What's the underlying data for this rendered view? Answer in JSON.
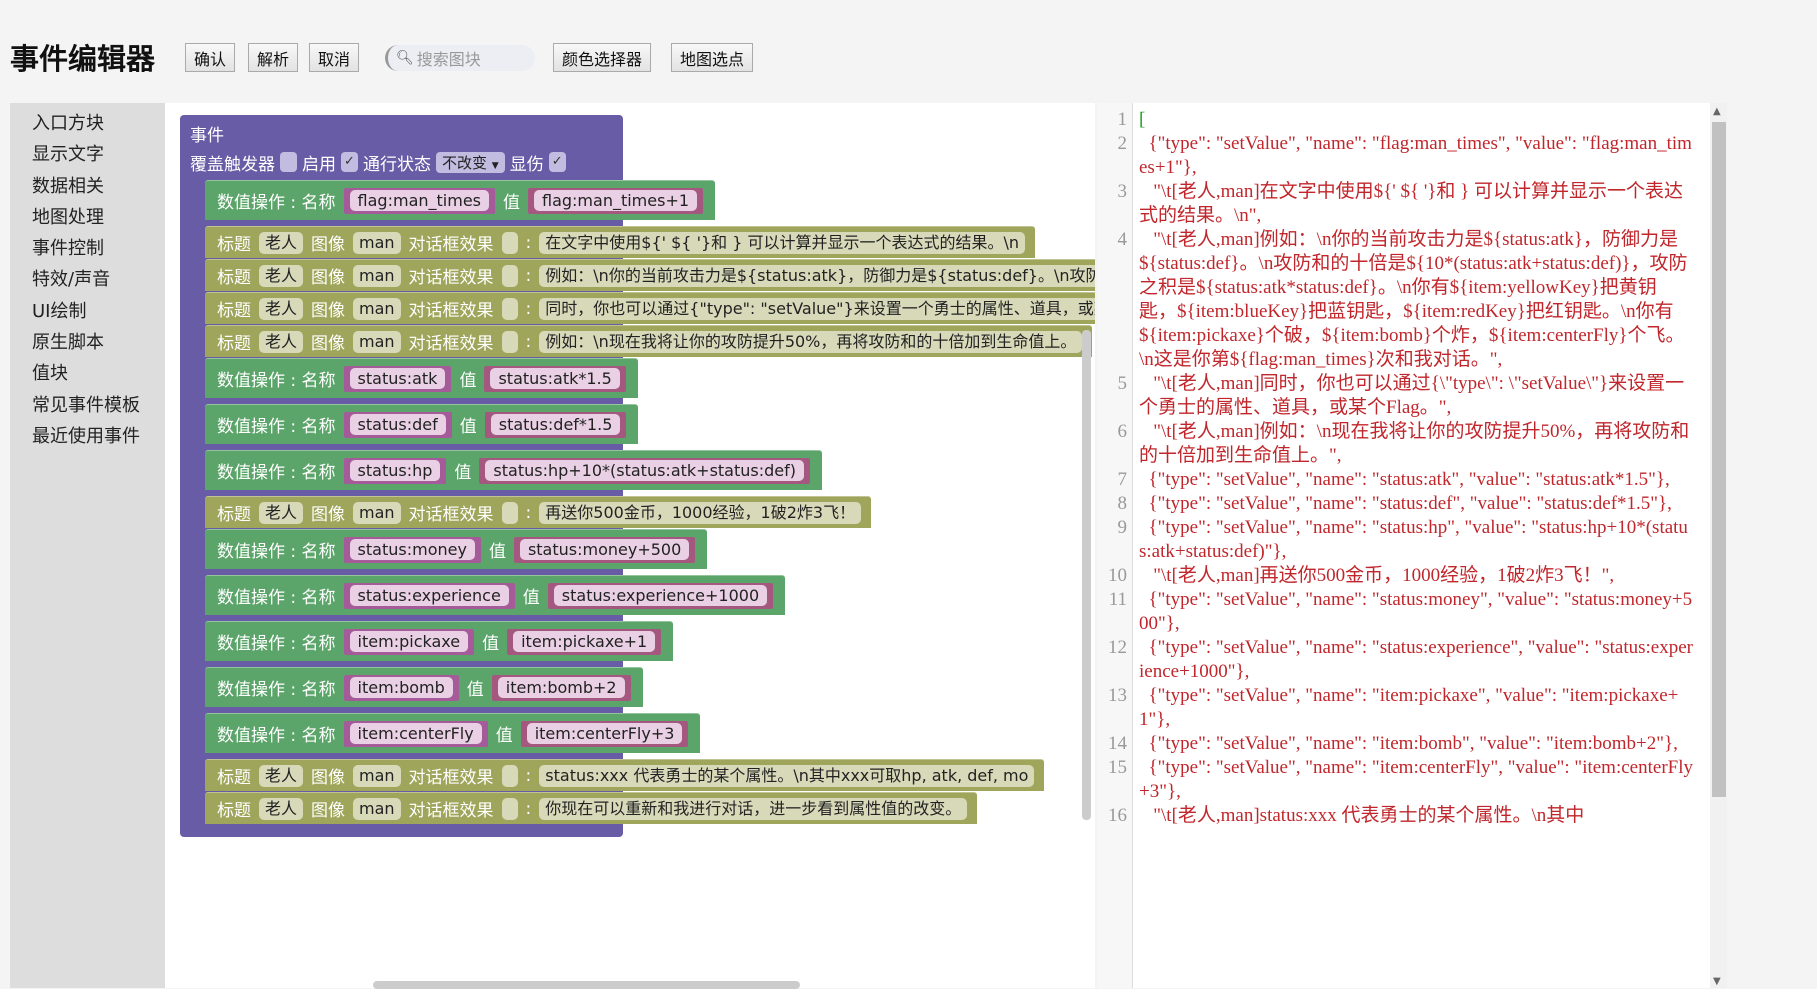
{
  "header": {
    "title": "事件编辑器",
    "buttons": [
      "确认",
      "解析",
      "取消"
    ],
    "search_placeholder": "搜索图块",
    "color_picker": "颜色选择器",
    "map_pick": "地图选点"
  },
  "sidebar": {
    "items": [
      "入口方块",
      "显示文字",
      "数据相关",
      "地图处理",
      "事件控制",
      "特效/声音",
      "UI绘制",
      "原生脚本",
      "值块",
      "常见事件模板",
      "最近使用事件"
    ]
  },
  "event": {
    "title": "事件",
    "override_label": "覆盖触发器",
    "override_checked": false,
    "enable_label": "启用",
    "enable_checked": true,
    "pass_label": "通行状态",
    "pass_value": "不改变",
    "show_damage_label": "显伤",
    "show_damage_checked": true
  },
  "labels": {
    "setvalue": "数值操作 : 名称",
    "value": "值",
    "title": "标题",
    "image": "图像",
    "dialog": "对话框效果",
    "colon": ":"
  },
  "blocks": [
    {
      "kind": "set",
      "name": "flag:man_times",
      "value": "flag:man_times+1"
    },
    {
      "kind": "text",
      "title": "老人",
      "image": "man",
      "text": "在文字中使用${' ${ '}和 } 可以计算并显示一个表达式的结果。\\n"
    },
    {
      "kind": "text",
      "title": "老人",
      "image": "man",
      "text": "例如：\\n你的当前攻击力是${status:atk}，防御力是${status:def}。\\n攻防和的十倍"
    },
    {
      "kind": "text",
      "title": "老人",
      "image": "man",
      "text": "同时，你也可以通过{\"type\": \"setValue\"}来设置一个勇士的属性、道具，或某个Flag。"
    },
    {
      "kind": "text",
      "title": "老人",
      "image": "man",
      "text": "例如：\\n现在我将让你的攻防提升50%，再将攻防和的十倍加到生命值上。"
    },
    {
      "kind": "set",
      "name": "status:atk",
      "value": "status:atk*1.5"
    },
    {
      "kind": "set",
      "name": "status:def",
      "value": "status:def*1.5"
    },
    {
      "kind": "set",
      "name": "status:hp",
      "value": "status:hp+10*(status:atk+status:def)"
    },
    {
      "kind": "text",
      "title": "老人",
      "image": "man",
      "text": "再送你500金币，1000经验，1破2炸3飞！"
    },
    {
      "kind": "set",
      "name": "status:money",
      "value": "status:money+500"
    },
    {
      "kind": "set",
      "name": "status:experience",
      "value": "status:experience+1000"
    },
    {
      "kind": "set",
      "name": "item:pickaxe",
      "value": "item:pickaxe+1"
    },
    {
      "kind": "set",
      "name": "item:bomb",
      "value": "item:bomb+2"
    },
    {
      "kind": "set",
      "name": "item:centerFly",
      "value": "item:centerFly+3"
    },
    {
      "kind": "text",
      "title": "老人",
      "image": "man",
      "text": "status:xxx 代表勇士的某个属性。\\n其中xxx可取hp, atk, def, mo"
    },
    {
      "kind": "text",
      "title": "老人",
      "image": "man",
      "text": "你现在可以重新和我进行对话，进一步看到属性值的改变。"
    }
  ],
  "code": {
    "lines": [
      "[",
      "  {\"type\": \"setValue\", \"name\": \"flag:man_times\", \"value\": \"flag:man_times+1\"},",
      "   \"\\t[老人,man]在文字中使用${' ${ '}和 } 可以计算并显示一个表达式的结果。\\n\",",
      "   \"\\t[老人,man]例如：\\n你的当前攻击力是${status:atk}，防御力是${status:def}。\\n攻防和的十倍是${10*(status:atk+status:def)}，攻防之积是${status:atk*status:def}。\\n你有${item:yellowKey}把黄钥匙，${item:blueKey}把蓝钥匙，${item:redKey}把红钥匙。\\n你有${item:pickaxe}个破，${item:bomb}个炸，${item:centerFly}个飞。\\n这是你第${flag:man_times}次和我对话。\",",
      "   \"\\t[老人,man]同时，你也可以通过{\\\"type\\\": \\\"setValue\\\"}来设置一个勇士的属性、道具，或某个Flag。\",",
      "   \"\\t[老人,man]例如：\\n现在我将让你的攻防提升50%，再将攻防和的十倍加到生命值上。\",",
      "  {\"type\": \"setValue\", \"name\": \"status:atk\", \"value\": \"status:atk*1.5\"},",
      "  {\"type\": \"setValue\", \"name\": \"status:def\", \"value\": \"status:def*1.5\"},",
      "  {\"type\": \"setValue\", \"name\": \"status:hp\", \"value\": \"status:hp+10*(status:atk+status:def)\"},",
      "   \"\\t[老人,man]再送你500金币，1000经验，1破2炸3飞！\",",
      "  {\"type\": \"setValue\", \"name\": \"status:money\", \"value\": \"status:money+500\"},",
      "  {\"type\": \"setValue\", \"name\": \"status:experience\", \"value\": \"status:experience+1000\"},",
      "  {\"type\": \"setValue\", \"name\": \"item:pickaxe\", \"value\": \"item:pickaxe+1\"},",
      "  {\"type\": \"setValue\", \"name\": \"item:bomb\", \"value\": \"item:bomb+2\"},",
      "  {\"type\": \"setValue\", \"name\": \"item:centerFly\", \"value\": \"item:centerFly+3\"},",
      "   \"\\t[老人,man]status:xxx 代表勇士的某个属性。\\n其中"
    ]
  },
  "colors": {
    "event": "#675ca5",
    "setvalue": "#5ba56a",
    "text": "#9fa55b",
    "name_block": "#a55b99",
    "value_block": "#a5587f",
    "code_text": "#c0262b"
  }
}
